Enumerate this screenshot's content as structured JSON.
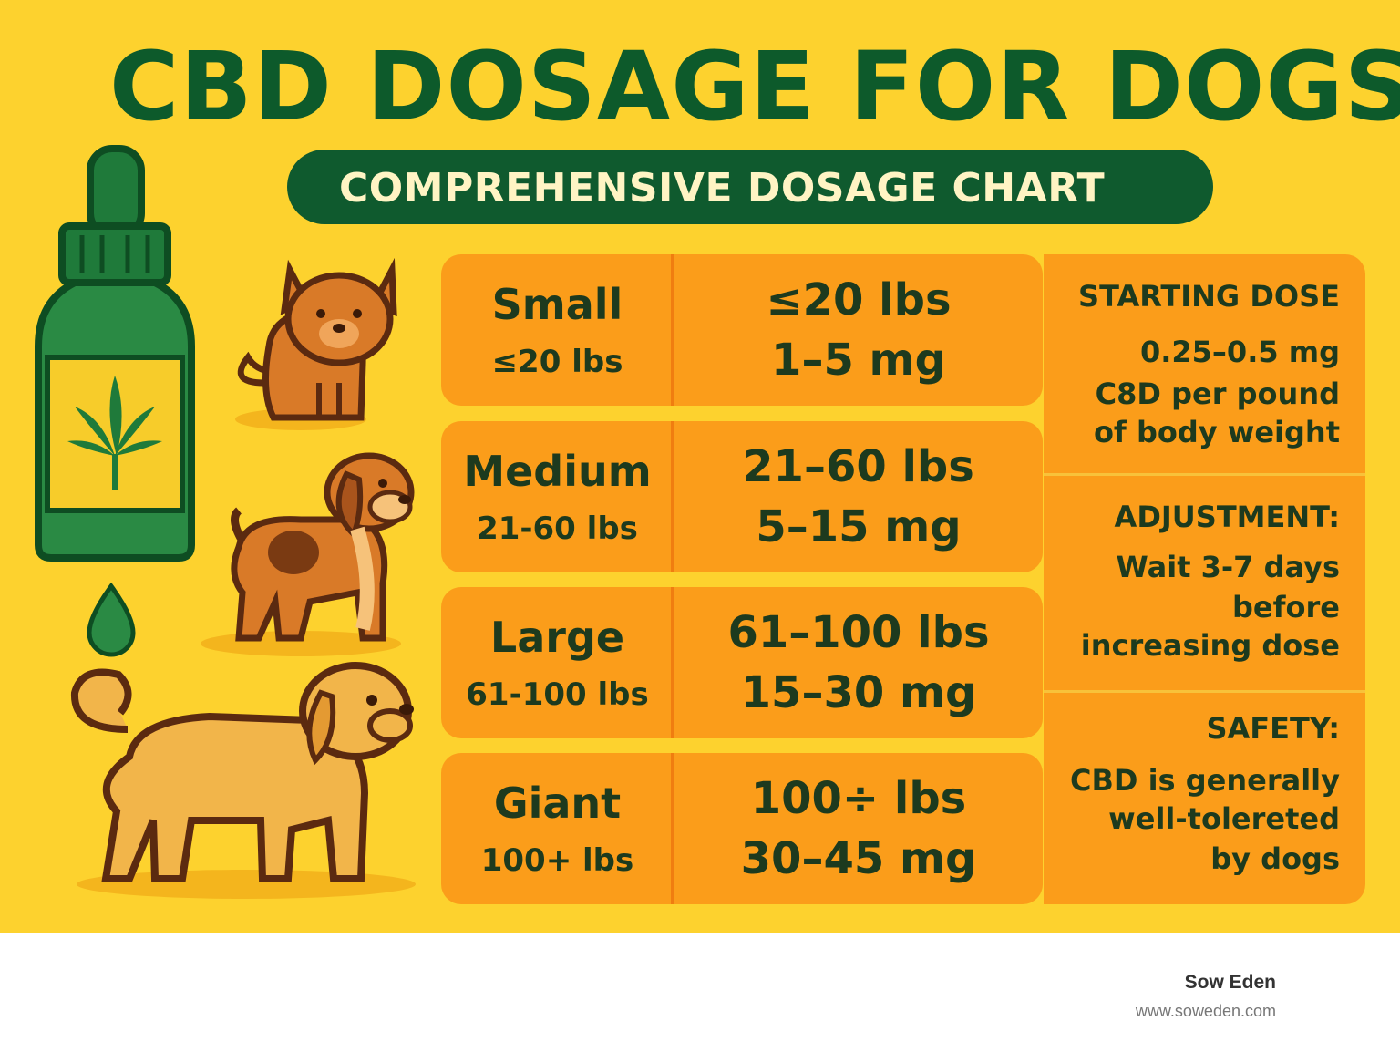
{
  "title": "CBD DOSAGE FOR DOGS",
  "subtitle": "COMPREHENSIVE DOSAGE CHART",
  "dosage_rows": [
    {
      "size": "Small",
      "range": "≤20 lbs",
      "weight": "≤20 lbs",
      "dose": "1–5 mg"
    },
    {
      "size": "Medium",
      "range": "21-60 lbs",
      "weight": "21–60 lbs",
      "dose": "5–15 mg"
    },
    {
      "size": "Large",
      "range": "61-100 lbs",
      "weight": "61–100 lbs",
      "dose": "15–30 mg"
    },
    {
      "size": "Giant",
      "range": "100+ lbs",
      "weight": "100÷ lbs",
      "dose": "30–45 mg"
    }
  ],
  "side_panel": {
    "starting_dose": {
      "heading": "STARTING DOSE",
      "lines": [
        "0.25–0.5 mg",
        "C8D per pound",
        "of body weight"
      ]
    },
    "adjustment": {
      "heading": "ADJUSTMENT:",
      "lines": [
        "Wait 3-7 days",
        "before",
        "increasing dose"
      ]
    },
    "safety": {
      "heading": "SAFETY:",
      "lines": [
        "CBD is generally",
        "well-tolereted",
        "by dogs"
      ]
    }
  },
  "icons": [
    "cbd-oil-bottle-icon",
    "cannabis-leaf-icon",
    "oil-drop-icon",
    "small-dog-icon",
    "medium-dog-icon",
    "large-dog-icon"
  ],
  "colors": {
    "background": "#fdd22e",
    "title_green": "#0d5a2b",
    "cell_orange": "#fb9d1a",
    "text_dark": "#1d3a1e"
  },
  "footer": {
    "brand": "Sow Eden",
    "url": "www.soweden.com"
  }
}
